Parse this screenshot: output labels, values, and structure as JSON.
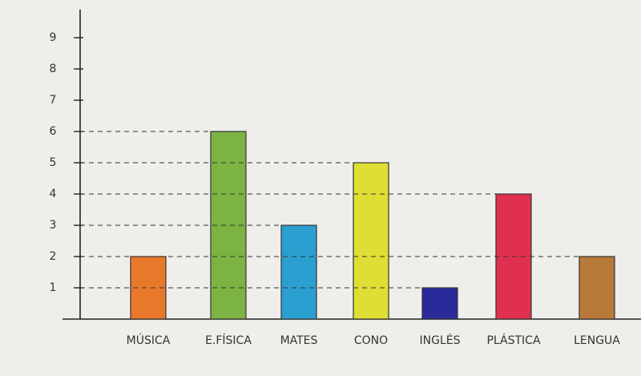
{
  "chart_data": {
    "type": "bar",
    "categories": [
      "MÚSICA",
      "E.FÍSICA",
      "MATES",
      "CONO",
      "INGLÉS",
      "PLÁSTICA",
      "LENGUA"
    ],
    "values": [
      2,
      6,
      3,
      5,
      1,
      4,
      2
    ],
    "colors": [
      "#e8782a",
      "#7cb342",
      "#2a9fd0",
      "#dede35",
      "#2a2a9a",
      "#e03050",
      "#b87a3a"
    ],
    "ylim": [
      0,
      10
    ],
    "yticks": [
      1,
      2,
      3,
      4,
      5,
      6,
      7,
      8,
      9
    ]
  }
}
